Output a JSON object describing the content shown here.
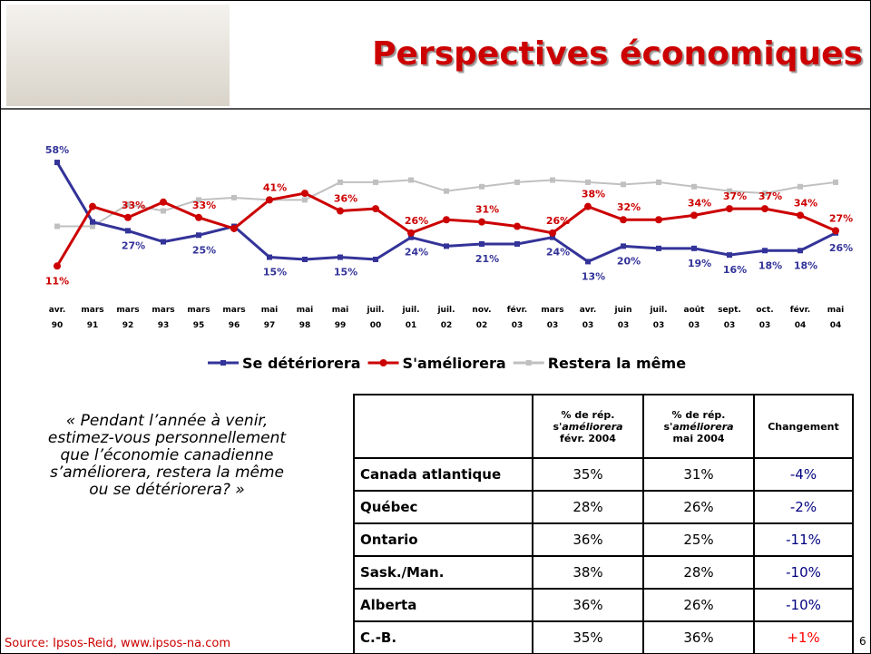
{
  "title": "Perspectives économiques",
  "chart_data": {
    "type": "line",
    "categories": [
      "avr. 90",
      "mars 91",
      "mars 92",
      "mars 93",
      "mars 95",
      "mars 96",
      "mai 97",
      "mai 98",
      "mai 99",
      "juil. 00",
      "juil. 01",
      "juil. 02",
      "nov. 02",
      "févr. 03",
      "mars 03",
      "avr. 03",
      "juin 03",
      "juil. 03",
      "août 03",
      "sept. 03",
      "oct. 03",
      "févr. 04",
      "mai 04"
    ],
    "series": [
      {
        "name": "Se détériorera",
        "color": "#333399",
        "marker": "square",
        "values": [
          58,
          31,
          27,
          22,
          25,
          29,
          15,
          14,
          15,
          14,
          24,
          20,
          21,
          21,
          24,
          13,
          20,
          19,
          19,
          16,
          18,
          18,
          26
        ],
        "value_labels": [
          "58%",
          null,
          "27%",
          null,
          "25%",
          null,
          "15%",
          null,
          "15%",
          null,
          "24%",
          null,
          "21%",
          null,
          "24%",
          "13%",
          "20%",
          null,
          "19%",
          "16%",
          "18%",
          "18%",
          "26%"
        ]
      },
      {
        "name": "S'améliorera",
        "color": "#cc0000",
        "marker": "circle",
        "values": [
          11,
          38,
          33,
          40,
          33,
          28,
          41,
          44,
          36,
          37,
          26,
          32,
          31,
          29,
          26,
          38,
          32,
          32,
          34,
          37,
          37,
          34,
          27
        ],
        "value_labels": [
          "11%",
          null,
          "33%",
          null,
          "33%",
          null,
          "41%",
          null,
          "36%",
          null,
          "26%",
          null,
          "31%",
          null,
          "26%",
          "38%",
          "32%",
          null,
          "34%",
          "37%",
          "37%",
          "34%",
          "27%"
        ]
      },
      {
        "name": "Restera la même",
        "color": "#c0c0c0",
        "marker": "square",
        "values": [
          29,
          29,
          39,
          36,
          41,
          42,
          41,
          41,
          49,
          49,
          50,
          45,
          47,
          49,
          50,
          49,
          48,
          49,
          47,
          45,
          44,
          47,
          49
        ]
      }
    ]
  },
  "quote": "« Pendant l’année à venir, estimez-vous personnellement que l’économie canadienne s’améliorera, restera la même ou se détériorera? »",
  "table": {
    "header": [
      "",
      {
        "pre": "% de rép. s'",
        "em": "améliorera",
        "post": "févr. 2004"
      },
      {
        "pre": "% de rép. s'",
        "em": "améliorera",
        "post": "mai 2004"
      },
      "Changement"
    ],
    "rows": [
      [
        "Canada atlantique",
        "35%",
        "31%",
        "-4%"
      ],
      [
        "Québec",
        "28%",
        "26%",
        "-2%"
      ],
      [
        "Ontario",
        "36%",
        "25%",
        "-11%"
      ],
      [
        "Sask./Man.",
        "38%",
        "28%",
        "-10%"
      ],
      [
        "Alberta",
        "36%",
        "26%",
        "-10%"
      ],
      [
        "C.-B.",
        "35%",
        "36%",
        "+1%"
      ]
    ]
  },
  "source": "Source: Ipsos-Reid, www.ipsos-na.com",
  "page_number": "6"
}
